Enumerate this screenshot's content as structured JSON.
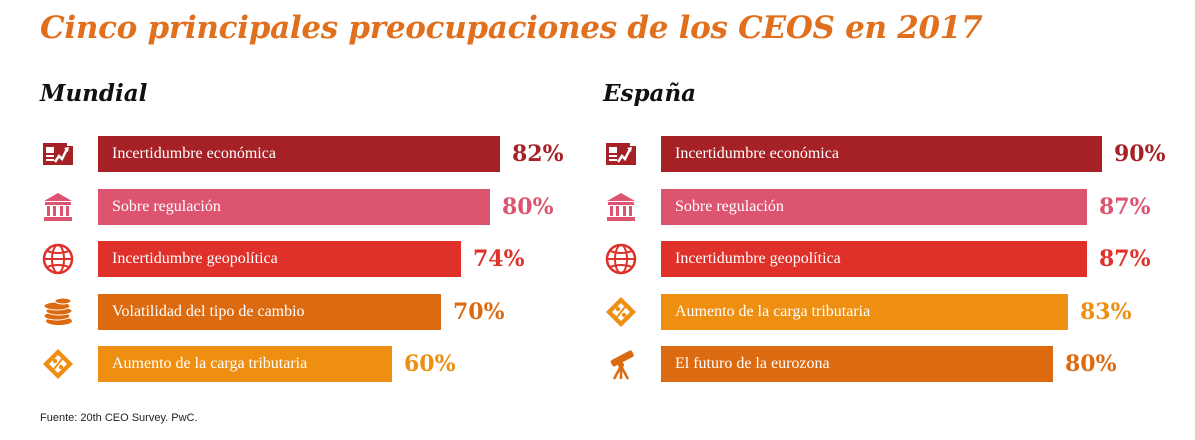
{
  "title": "Cinco principales preocupaciones de los CEOS en 2017",
  "footer": "Fuente: 20th CEO Survey. PwC.",
  "colors": {
    "title": "#e0701e",
    "darkred": "#a62125",
    "pink": "#dc5470",
    "red": "#e0302a",
    "darkorange": "#dc6a10",
    "orange": "#ee8f11"
  },
  "chart_data": [
    {
      "type": "bar",
      "title": "Mundial",
      "categories": [
        "Incertidumbre económica",
        "Sobre regulación",
        "Incertidumbre geopolítica",
        "Volatilidad del tipo de cambio",
        "Aumento de la carga tributaria"
      ],
      "values": [
        82,
        80,
        74,
        70,
        60
      ],
      "value_labels": [
        "82%",
        "80%",
        "74%",
        "70%",
        "60%"
      ],
      "bar_colors": [
        "#a62125",
        "#dc5470",
        "#e0302a",
        "#dc6a10",
        "#ee8f11"
      ],
      "icons": [
        "newspaper-chart-icon",
        "government-building-icon",
        "globe-icon",
        "coins-stack-icon",
        "percent-tag-icon"
      ],
      "orientation": "horizontal"
    },
    {
      "type": "bar",
      "title": "España",
      "categories": [
        "Incertidumbre económica",
        "Sobre regulación",
        "Incertidumbre geopolítica",
        "Aumento de la carga tributaria",
        "El futuro de la eurozona"
      ],
      "values": [
        90,
        87,
        87,
        83,
        80
      ],
      "value_labels": [
        "90%",
        "87%",
        "87%",
        "83%",
        "80%"
      ],
      "bar_colors": [
        "#a62125",
        "#dc5470",
        "#e0302a",
        "#ee8f11",
        "#dc6a10"
      ],
      "icons": [
        "newspaper-chart-icon",
        "government-building-icon",
        "globe-icon",
        "percent-tag-icon",
        "telescope-icon"
      ],
      "orientation": "horizontal"
    }
  ]
}
